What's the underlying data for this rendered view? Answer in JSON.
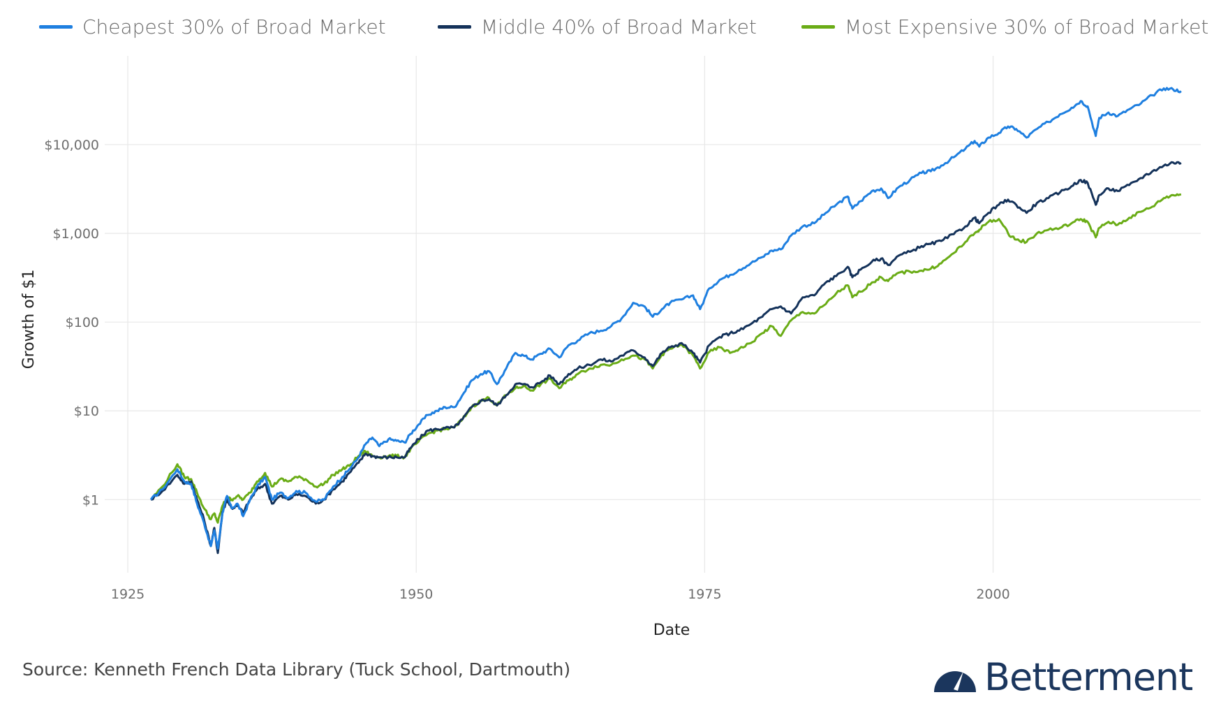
{
  "colors": {
    "cheap": "#1e7fe0",
    "middle": "#14325a",
    "expensive": "#6aac16",
    "grid": "#e7e7e7",
    "brand": "#1b365d"
  },
  "legend": [
    {
      "name": "Cheapest 30% of Broad Market",
      "color": "#1e7fe0"
    },
    {
      "name": "Middle 40% of Broad Market",
      "color": "#14325a"
    },
    {
      "name": "Most Expensive 30% of Broad Market",
      "color": "#6aac16"
    }
  ],
  "source": "Source: Kenneth French Data Library (Tuck School, Dartmouth)",
  "brand": {
    "name": "Betterment",
    "icon": "speedometer-icon"
  },
  "chart_data": {
    "type": "line",
    "xlabel": "Date",
    "ylabel": "Growth of $1",
    "y_scale": "log",
    "xlim": [
      1923,
      2018
    ],
    "ylim": [
      0.15,
      100000
    ],
    "x_ticks": [
      1925,
      1950,
      1975,
      2000
    ],
    "x_tick_labels": [
      "1925",
      "1950",
      "1975",
      "2000"
    ],
    "y_ticks": [
      1,
      10,
      100,
      1000,
      10000
    ],
    "y_tick_labels": [
      "$1",
      "$10",
      "$100",
      "$1,000",
      "$10,000"
    ],
    "grid": true,
    "legend_position": "top",
    "series": [
      {
        "name": "Cheapest 30% of Broad Market",
        "color": "#1e7fe0",
        "x": [
          1927,
          1928,
          1929.3,
          1929.9,
          1930.5,
          1931,
          1931.6,
          1932.2,
          1932.5,
          1932.8,
          1933.2,
          1933.6,
          1934,
          1934.5,
          1935,
          1935.6,
          1936.2,
          1936.9,
          1937.5,
          1938.2,
          1938.9,
          1939.6,
          1940.4,
          1941.3,
          1942,
          1942.8,
          1943.6,
          1944.2,
          1945,
          1945.6,
          1946.2,
          1946.8,
          1947.6,
          1948.3,
          1949,
          1949.5,
          1950.2,
          1951,
          1951.8,
          1952.5,
          1953.3,
          1954,
          1954.8,
          1955.6,
          1956.3,
          1957,
          1957.8,
          1958.6,
          1959.3,
          1960,
          1960.8,
          1961.6,
          1962.4,
          1963.2,
          1964,
          1965,
          1966,
          1966.9,
          1967.8,
          1968.8,
          1969.8,
          1970.5,
          1971.3,
          1972,
          1973,
          1974,
          1974.6,
          1975.4,
          1976.3,
          1977.2,
          1978,
          1979,
          1980,
          1980.8,
          1981.6,
          1982.5,
          1983.5,
          1984.5,
          1985.5,
          1986.4,
          1987.4,
          1987.8,
          1988.5,
          1989.5,
          1990.3,
          1990.9,
          1991.8,
          1992.8,
          1993.8,
          1994.6,
          1995.5,
          1996.6,
          1997.6,
          1998.4,
          1998.8,
          1999.6,
          2000.5,
          2001.3,
          2002,
          2002.9,
          2003.8,
          2004.8,
          2005.8,
          2006.8,
          2007.6,
          2008.2,
          2008.9,
          2009.2,
          2010,
          2010.8,
          2011.8,
          2012.8,
          2013.8,
          2014.8,
          2015.6,
          2016.3
        ],
        "y": [
          1,
          1.3,
          2.2,
          1.6,
          1.5,
          0.9,
          0.55,
          0.3,
          0.45,
          0.28,
          0.7,
          1.1,
          0.8,
          0.9,
          0.65,
          1.0,
          1.4,
          1.8,
          1.0,
          1.2,
          1.05,
          1.25,
          1.2,
          0.95,
          1.0,
          1.4,
          1.8,
          2.2,
          3.0,
          4.2,
          5.0,
          4.0,
          4.8,
          4.6,
          4.4,
          5.5,
          7.0,
          9.0,
          10.0,
          11.0,
          11.0,
          15.0,
          22.0,
          26.0,
          28.0,
          20.0,
          30.0,
          45.0,
          42.0,
          38.0,
          44.0,
          50.0,
          40.0,
          55.0,
          62.0,
          75.0,
          80.0,
          90.0,
          110.0,
          165.0,
          150.0,
          115.0,
          140.0,
          165.0,
          180.0,
          200.0,
          140.0,
          240.0,
          300.0,
          340.0,
          390.0,
          460.0,
          540.0,
          640.0,
          660.0,
          950.0,
          1200.0,
          1300.0,
          1700.0,
          2100.0,
          2600.0,
          1900.0,
          2300.0,
          3000.0,
          3200.0,
          2500.0,
          3300.0,
          4000.0,
          4800.0,
          5000.0,
          5800.0,
          7200.0,
          9000.0,
          11000.0,
          9500.0,
          12000.0,
          13500.0,
          16000.0,
          15000.0,
          12000.0,
          15000.0,
          18000.0,
          22000.0,
          26000.0,
          31000.0,
          27000.0,
          12500.0,
          20000.0,
          23000.0,
          21000.0,
          25000.0,
          29000.0,
          36000.0,
          43000.0,
          42000.0,
          40000.0
        ]
      },
      {
        "name": "Middle 40% of Broad Market",
        "color": "#14325a",
        "x": [
          1927,
          1928,
          1929.3,
          1929.9,
          1930.5,
          1931,
          1931.6,
          1932.2,
          1932.5,
          1932.8,
          1933.2,
          1933.6,
          1934,
          1934.5,
          1935,
          1935.6,
          1936.2,
          1936.9,
          1937.5,
          1938.2,
          1938.9,
          1939.6,
          1940.4,
          1941.3,
          1942,
          1942.8,
          1943.6,
          1944.2,
          1945,
          1945.6,
          1946.2,
          1946.8,
          1947.6,
          1948.3,
          1949,
          1949.5,
          1950.2,
          1951,
          1951.8,
          1952.5,
          1953.3,
          1954,
          1954.8,
          1955.6,
          1956.3,
          1957,
          1957.8,
          1958.6,
          1959.3,
          1960,
          1960.8,
          1961.6,
          1962.4,
          1963.2,
          1964,
          1965,
          1966,
          1966.9,
          1967.8,
          1968.8,
          1969.8,
          1970.5,
          1971.3,
          1972,
          1973,
          1974,
          1974.6,
          1975.4,
          1976.3,
          1977.2,
          1978,
          1979,
          1980,
          1980.8,
          1981.6,
          1982.5,
          1983.5,
          1984.5,
          1985.5,
          1986.4,
          1987.4,
          1987.8,
          1988.5,
          1989.5,
          1990.3,
          1990.9,
          1991.8,
          1992.8,
          1993.8,
          1994.6,
          1995.5,
          1996.6,
          1997.6,
          1998.4,
          1998.8,
          1999.6,
          2000.5,
          2001.3,
          2002,
          2002.9,
          2003.8,
          2004.8,
          2005.8,
          2006.8,
          2007.6,
          2008.2,
          2008.9,
          2009.2,
          2010,
          2010.8,
          2011.8,
          2012.8,
          2013.8,
          2014.8,
          2015.6,
          2016.3
        ],
        "y": [
          1,
          1.25,
          1.9,
          1.5,
          1.6,
          1.0,
          0.6,
          0.3,
          0.48,
          0.25,
          0.72,
          1.0,
          0.8,
          0.85,
          0.72,
          1.0,
          1.3,
          1.5,
          0.9,
          1.1,
          1.0,
          1.15,
          1.1,
          0.9,
          1.0,
          1.3,
          1.6,
          2.0,
          2.6,
          3.3,
          3.1,
          3.0,
          3.0,
          3.0,
          3.0,
          3.8,
          4.8,
          6.0,
          6.2,
          6.4,
          6.5,
          8.0,
          11.0,
          13.0,
          13.5,
          11.5,
          15.0,
          20.0,
          20.0,
          18.5,
          21.0,
          25.0,
          20.0,
          26.0,
          30.0,
          33.0,
          38.0,
          36.0,
          42.0,
          48.0,
          40.0,
          32.0,
          45.0,
          52.0,
          58.0,
          45.0,
          35.0,
          55.0,
          68.0,
          75.0,
          80.0,
          95.0,
          115.0,
          140.0,
          150.0,
          125.0,
          190.0,
          200.0,
          280.0,
          330.0,
          420.0,
          320.0,
          390.0,
          480.0,
          520.0,
          440.0,
          560.0,
          620.0,
          720.0,
          760.0,
          820.0,
          980.0,
          1200.0,
          1500.0,
          1300.0,
          1700.0,
          2100.0,
          2400.0,
          2100.0,
          1700.0,
          2200.0,
          2500.0,
          2900.0,
          3400.0,
          4000.0,
          3700.0,
          2100.0,
          2700.0,
          3200.0,
          3000.0,
          3500.0,
          4200.0,
          5000.0,
          5800.0,
          6300.0,
          6200.0
        ]
      },
      {
        "name": "Most Expensive 30% of Broad Market",
        "color": "#6aac16",
        "x": [
          1927,
          1928,
          1929.3,
          1929.9,
          1930.5,
          1931,
          1931.6,
          1932.2,
          1932.5,
          1932.8,
          1933.2,
          1933.6,
          1934,
          1934.5,
          1935,
          1935.6,
          1936.2,
          1936.9,
          1937.5,
          1938.2,
          1938.9,
          1939.6,
          1940.4,
          1941.3,
          1942,
          1942.8,
          1943.6,
          1944.2,
          1945,
          1945.6,
          1946.2,
          1946.8,
          1947.6,
          1948.3,
          1949,
          1949.5,
          1950.2,
          1951,
          1951.8,
          1952.5,
          1953.3,
          1954,
          1954.8,
          1955.6,
          1956.3,
          1957,
          1957.8,
          1958.6,
          1959.3,
          1960,
          1960.8,
          1961.6,
          1962.4,
          1963.2,
          1964,
          1965,
          1966,
          1966.9,
          1967.8,
          1968.8,
          1969.8,
          1970.5,
          1971.3,
          1972,
          1973,
          1974,
          1974.6,
          1975.4,
          1976.3,
          1977.2,
          1978,
          1979,
          1980,
          1980.8,
          1981.6,
          1982.5,
          1983.5,
          1984.5,
          1985.5,
          1986.4,
          1987.4,
          1987.8,
          1988.5,
          1989.5,
          1990.3,
          1990.9,
          1991.8,
          1992.8,
          1993.8,
          1994.6,
          1995.5,
          1996.6,
          1997.6,
          1998.4,
          1998.8,
          1999.6,
          2000.5,
          2001.3,
          2002,
          2002.9,
          2003.8,
          2004.8,
          2005.8,
          2006.8,
          2007.6,
          2008.2,
          2008.9,
          2009.2,
          2010,
          2010.8,
          2011.8,
          2012.8,
          2013.8,
          2014.8,
          2015.6,
          2016.3
        ],
        "y": [
          1,
          1.4,
          2.5,
          1.8,
          1.7,
          1.2,
          0.8,
          0.6,
          0.7,
          0.55,
          0.85,
          1.05,
          1.0,
          1.1,
          1.0,
          1.2,
          1.6,
          2.0,
          1.4,
          1.7,
          1.6,
          1.8,
          1.7,
          1.4,
          1.5,
          1.9,
          2.2,
          2.4,
          3.1,
          3.5,
          3.1,
          3.0,
          3.1,
          3.1,
          3.0,
          3.7,
          4.5,
          5.5,
          6.0,
          6.2,
          6.5,
          8.0,
          11.0,
          13.0,
          14.0,
          11.5,
          15.0,
          18.0,
          19.0,
          17.0,
          20.0,
          23.0,
          18.0,
          22.0,
          26.0,
          30.0,
          33.0,
          33.0,
          38.0,
          42.0,
          38.0,
          30.0,
          43.0,
          50.0,
          56.0,
          42.0,
          30.0,
          46.0,
          52.0,
          45.0,
          50.0,
          58.0,
          75.0,
          90.0,
          70.0,
          105.0,
          130.0,
          125.0,
          160.0,
          210.0,
          260.0,
          190.0,
          220.0,
          280.0,
          320.0,
          290.0,
          360.0,
          370.0,
          380.0,
          400.0,
          460.0,
          600.0,
          800.0,
          1000.0,
          1100.0,
          1350.0,
          1450.0,
          1000.0,
          850.0,
          800.0,
          1000.0,
          1100.0,
          1150.0,
          1300.0,
          1450.0,
          1350.0,
          900.0,
          1150.0,
          1350.0,
          1250.0,
          1500.0,
          1750.0,
          2000.0,
          2500.0,
          2700.0,
          2750.0
        ]
      }
    ]
  }
}
